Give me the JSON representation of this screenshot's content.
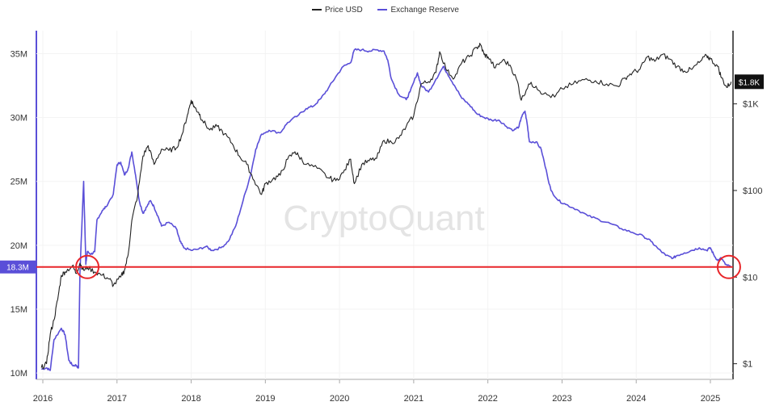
{
  "chart_data": {
    "type": "line",
    "watermark": "CryptoQuant",
    "legend": [
      {
        "name": "Price USD",
        "color": "#222222"
      },
      {
        "name": "Exchange Reserve",
        "color": "#5a4fd8"
      }
    ],
    "x_ticks": [
      "2016",
      "2017",
      "2018",
      "2019",
      "2020",
      "2021",
      "2022",
      "2023",
      "2024",
      "2025"
    ],
    "y_left": {
      "ticks": [
        {
          "v": 35,
          "label": "35M"
        },
        {
          "v": 30,
          "label": "30M"
        },
        {
          "v": 25,
          "label": "25M"
        },
        {
          "v": 20,
          "label": "20M"
        },
        {
          "v": 15,
          "label": "15M"
        },
        {
          "v": 10,
          "label": "10M"
        }
      ],
      "range": [
        9.5,
        36.8
      ]
    },
    "y_right": {
      "scale": "log",
      "ticks": [
        {
          "v": 1000,
          "label": "$1K"
        },
        {
          "v": 100,
          "label": "$100"
        },
        {
          "v": 10,
          "label": "$10"
        },
        {
          "v": 1,
          "label": "$1"
        }
      ],
      "range": [
        0.66,
        7000
      ]
    },
    "current_labels": {
      "left": "18.3M",
      "right": "$1.8K"
    },
    "reference_line": {
      "value": 18.3,
      "color": "#e8262a"
    },
    "highlights": [
      {
        "x": 2016.6,
        "y": 18.3
      },
      {
        "x": 2025.25,
        "y": 18.3
      }
    ],
    "series": [
      {
        "name": "Exchange Reserve",
        "axis": "left",
        "color": "#5a4fd8",
        "points": [
          [
            2015.98,
            10.3
          ],
          [
            2016.05,
            10.4
          ],
          [
            2016.1,
            10.2
          ],
          [
            2016.15,
            12.6
          ],
          [
            2016.25,
            13.5
          ],
          [
            2016.3,
            13.0
          ],
          [
            2016.35,
            11.0
          ],
          [
            2016.4,
            10.6
          ],
          [
            2016.45,
            10.6
          ],
          [
            2016.48,
            10.4
          ],
          [
            2016.5,
            17.8
          ],
          [
            2016.55,
            25.0
          ],
          [
            2016.58,
            18.5
          ],
          [
            2016.6,
            19.5
          ],
          [
            2016.65,
            19.3
          ],
          [
            2016.7,
            19.5
          ],
          [
            2016.73,
            22.0
          ],
          [
            2016.8,
            22.7
          ],
          [
            2016.85,
            23.0
          ],
          [
            2016.95,
            24.0
          ],
          [
            2017.0,
            26.3
          ],
          [
            2017.05,
            26.5
          ],
          [
            2017.1,
            25.5
          ],
          [
            2017.15,
            26.0
          ],
          [
            2017.2,
            27.3
          ],
          [
            2017.25,
            25.5
          ],
          [
            2017.3,
            23.5
          ],
          [
            2017.35,
            22.5
          ],
          [
            2017.4,
            23.0
          ],
          [
            2017.45,
            23.5
          ],
          [
            2017.5,
            23.0
          ],
          [
            2017.55,
            22.3
          ],
          [
            2017.6,
            21.5
          ],
          [
            2017.7,
            21.8
          ],
          [
            2017.8,
            21.3
          ],
          [
            2017.85,
            20.3
          ],
          [
            2017.9,
            19.8
          ],
          [
            2018.0,
            19.6
          ],
          [
            2018.1,
            19.7
          ],
          [
            2018.2,
            19.9
          ],
          [
            2018.28,
            19.6
          ],
          [
            2018.4,
            19.8
          ],
          [
            2018.5,
            20.3
          ],
          [
            2018.6,
            21.5
          ],
          [
            2018.7,
            23.5
          ],
          [
            2018.8,
            25.5
          ],
          [
            2018.87,
            27.5
          ],
          [
            2018.95,
            28.7
          ],
          [
            2019.05,
            29.0
          ],
          [
            2019.2,
            28.8
          ],
          [
            2019.3,
            29.6
          ],
          [
            2019.45,
            30.2
          ],
          [
            2019.55,
            30.7
          ],
          [
            2019.65,
            30.9
          ],
          [
            2019.75,
            31.5
          ],
          [
            2019.85,
            32.3
          ],
          [
            2019.95,
            33.2
          ],
          [
            2020.05,
            34.0
          ],
          [
            2020.15,
            34.3
          ],
          [
            2020.2,
            35.3
          ],
          [
            2020.3,
            35.3
          ],
          [
            2020.4,
            35.2
          ],
          [
            2020.5,
            35.3
          ],
          [
            2020.6,
            35.2
          ],
          [
            2020.65,
            34.5
          ],
          [
            2020.7,
            33.0
          ],
          [
            2020.8,
            31.8
          ],
          [
            2020.9,
            31.4
          ],
          [
            2020.95,
            32.0
          ],
          [
            2021.05,
            33.5
          ],
          [
            2021.1,
            32.5
          ],
          [
            2021.2,
            32.0
          ],
          [
            2021.3,
            33.0
          ],
          [
            2021.4,
            34.0
          ],
          [
            2021.45,
            33.5
          ],
          [
            2021.55,
            32.5
          ],
          [
            2021.65,
            31.5
          ],
          [
            2021.75,
            31.0
          ],
          [
            2021.85,
            30.3
          ],
          [
            2021.95,
            30.0
          ],
          [
            2022.05,
            29.8
          ],
          [
            2022.15,
            29.8
          ],
          [
            2022.25,
            29.3
          ],
          [
            2022.35,
            29.0
          ],
          [
            2022.42,
            29.3
          ],
          [
            2022.45,
            30.0
          ],
          [
            2022.5,
            30.5
          ],
          [
            2022.53,
            29.5
          ],
          [
            2022.56,
            28.1
          ],
          [
            2022.65,
            28.1
          ],
          [
            2022.72,
            27.5
          ],
          [
            2022.8,
            25.5
          ],
          [
            2022.85,
            24.3
          ],
          [
            2022.95,
            23.5
          ],
          [
            2023.05,
            23.2
          ],
          [
            2023.2,
            22.8
          ],
          [
            2023.35,
            22.3
          ],
          [
            2023.5,
            22.0
          ],
          [
            2023.65,
            21.7
          ],
          [
            2023.8,
            21.3
          ],
          [
            2023.95,
            21.0
          ],
          [
            2024.1,
            20.7
          ],
          [
            2024.2,
            20.3
          ],
          [
            2024.3,
            19.7
          ],
          [
            2024.4,
            19.2
          ],
          [
            2024.5,
            19.0
          ],
          [
            2024.55,
            19.2
          ],
          [
            2024.65,
            19.4
          ],
          [
            2024.75,
            19.6
          ],
          [
            2024.85,
            19.8
          ],
          [
            2024.95,
            19.6
          ],
          [
            2025.0,
            19.8
          ],
          [
            2025.05,
            19.2
          ],
          [
            2025.1,
            18.8
          ],
          [
            2025.15,
            19.0
          ],
          [
            2025.2,
            18.5
          ],
          [
            2025.28,
            18.3
          ]
        ]
      },
      {
        "name": "Price USD",
        "axis": "right",
        "color": "#222222",
        "points": [
          [
            2015.98,
            0.9
          ],
          [
            2016.05,
            1.0
          ],
          [
            2016.1,
            2.2
          ],
          [
            2016.15,
            3.2
          ],
          [
            2016.2,
            5.5
          ],
          [
            2016.25,
            10.5
          ],
          [
            2016.3,
            11.5
          ],
          [
            2016.4,
            13.5
          ],
          [
            2016.45,
            11.0
          ],
          [
            2016.5,
            14.5
          ],
          [
            2016.55,
            12.0
          ],
          [
            2016.6,
            13.0
          ],
          [
            2016.7,
            11.5
          ],
          [
            2016.8,
            10.5
          ],
          [
            2016.9,
            9.5
          ],
          [
            2016.95,
            8.0
          ],
          [
            2017.05,
            10.0
          ],
          [
            2017.1,
            12.0
          ],
          [
            2017.15,
            18.0
          ],
          [
            2017.2,
            45.0
          ],
          [
            2017.28,
            90.0
          ],
          [
            2017.35,
            250.0
          ],
          [
            2017.42,
            330.0
          ],
          [
            2017.5,
            200.0
          ],
          [
            2017.6,
            300.0
          ],
          [
            2017.7,
            290.0
          ],
          [
            2017.8,
            310.0
          ],
          [
            2017.88,
            450.0
          ],
          [
            2017.95,
            750.0
          ],
          [
            2018.0,
            1100.0
          ],
          [
            2018.05,
            900.0
          ],
          [
            2018.1,
            800.0
          ],
          [
            2018.15,
            650.0
          ],
          [
            2018.25,
            500.0
          ],
          [
            2018.35,
            550.0
          ],
          [
            2018.45,
            450.0
          ],
          [
            2018.55,
            350.0
          ],
          [
            2018.65,
            250.0
          ],
          [
            2018.75,
            200.0
          ],
          [
            2018.85,
            130.0
          ],
          [
            2018.95,
            90.0
          ],
          [
            2019.0,
            120.0
          ],
          [
            2019.1,
            135.0
          ],
          [
            2019.2,
            150.0
          ],
          [
            2019.3,
            230.0
          ],
          [
            2019.4,
            280.0
          ],
          [
            2019.45,
            250.0
          ],
          [
            2019.55,
            200.0
          ],
          [
            2019.7,
            180.0
          ],
          [
            2019.85,
            140.0
          ],
          [
            2019.95,
            130.0
          ],
          [
            2020.05,
            160.0
          ],
          [
            2020.15,
            230.0
          ],
          [
            2020.2,
            120.0
          ],
          [
            2020.3,
            200.0
          ],
          [
            2020.4,
            220.0
          ],
          [
            2020.5,
            235.0
          ],
          [
            2020.6,
            380.0
          ],
          [
            2020.7,
            360.0
          ],
          [
            2020.8,
            400.0
          ],
          [
            2020.9,
            550.0
          ],
          [
            2021.0,
            730.0
          ],
          [
            2021.1,
            1700.0
          ],
          [
            2021.2,
            1800.0
          ],
          [
            2021.3,
            2300.0
          ],
          [
            2021.35,
            4000.0
          ],
          [
            2021.45,
            2400.0
          ],
          [
            2021.55,
            2000.0
          ],
          [
            2021.65,
            3000.0
          ],
          [
            2021.75,
            3500.0
          ],
          [
            2021.85,
            4500.0
          ],
          [
            2021.9,
            4800.0
          ],
          [
            2021.95,
            3700.0
          ],
          [
            2022.0,
            3500.0
          ],
          [
            2022.1,
            2600.0
          ],
          [
            2022.2,
            3200.0
          ],
          [
            2022.3,
            2800.0
          ],
          [
            2022.4,
            1800.0
          ],
          [
            2022.45,
            1100.0
          ],
          [
            2022.55,
            1700.0
          ],
          [
            2022.65,
            1600.0
          ],
          [
            2022.75,
            1300.0
          ],
          [
            2022.9,
            1200.0
          ],
          [
            2023.0,
            1500.0
          ],
          [
            2023.15,
            1700.0
          ],
          [
            2023.3,
            1900.0
          ],
          [
            2023.45,
            1850.0
          ],
          [
            2023.6,
            1700.0
          ],
          [
            2023.75,
            1600.0
          ],
          [
            2023.85,
            2000.0
          ],
          [
            2023.95,
            2300.0
          ],
          [
            2024.05,
            2500.0
          ],
          [
            2024.15,
            3500.0
          ],
          [
            2024.25,
            3100.0
          ],
          [
            2024.35,
            3700.0
          ],
          [
            2024.45,
            3300.0
          ],
          [
            2024.55,
            2700.0
          ],
          [
            2024.65,
            2400.0
          ],
          [
            2024.75,
            2500.0
          ],
          [
            2024.85,
            3000.0
          ],
          [
            2024.95,
            3600.0
          ],
          [
            2025.0,
            3300.0
          ],
          [
            2025.1,
            2700.0
          ],
          [
            2025.15,
            2000.0
          ],
          [
            2025.22,
            1550.0
          ],
          [
            2025.28,
            1800.0
          ]
        ]
      }
    ]
  }
}
